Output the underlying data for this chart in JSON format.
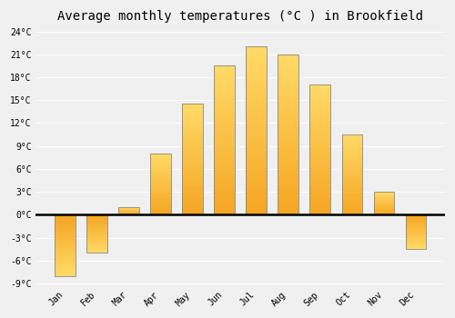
{
  "months": [
    "Jan",
    "Feb",
    "Mar",
    "Apr",
    "May",
    "Jun",
    "Jul",
    "Aug",
    "Sep",
    "Oct",
    "Nov",
    "Dec"
  ],
  "values": [
    -8.0,
    -5.0,
    1.0,
    8.0,
    14.5,
    19.5,
    22.0,
    21.0,
    17.0,
    10.5,
    3.0,
    -4.5
  ],
  "bar_color_bottom": "#F5A623",
  "bar_color_top": "#FFD966",
  "bar_edge_color": "#888888",
  "title": "Average monthly temperatures (°C ) in Brookfield",
  "title_fontsize": 10,
  "ylim_min": -9,
  "ylim_max": 24,
  "yticks": [
    -9,
    -6,
    -3,
    0,
    3,
    6,
    9,
    12,
    15,
    18,
    21,
    24
  ],
  "background_color": "#f0f0f0",
  "grid_color": "#ffffff",
  "zero_line_color": "#000000",
  "bar_width": 0.65,
  "gradient_steps": 50
}
